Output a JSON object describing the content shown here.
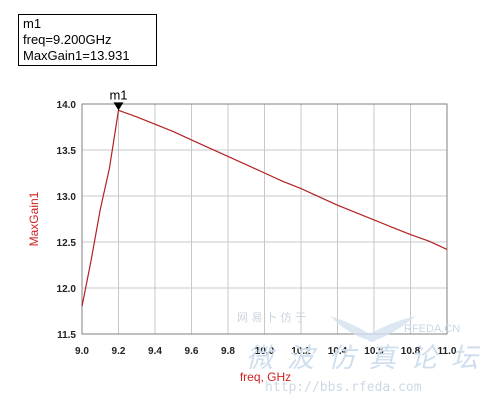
{
  "marker": {
    "name": "m1",
    "freq_line": "freq=9.200GHz",
    "value_line": "MaxGain1=13.931"
  },
  "watermark": {
    "cn_small": "网 易 卜 仿 于",
    "brand": "RFEDA.CN",
    "cn_big": "微波仿真论坛",
    "url": "http://bbs.rfeda.com"
  },
  "chart_data": {
    "type": "line",
    "xlabel": "freq, GHz",
    "ylabel": "MaxGain1",
    "xlim": [
      9.0,
      11.0
    ],
    "ylim": [
      11.5,
      14.0
    ],
    "x_ticks": [
      "9.0",
      "9.2",
      "9.4",
      "9.6",
      "9.8",
      "10.0",
      "10.2",
      "10.4",
      "10.6",
      "10.8",
      "11.0"
    ],
    "y_ticks": [
      "11.5",
      "12.0",
      "12.5",
      "13.0",
      "13.5",
      "14.0"
    ],
    "grid": true,
    "line_color": "#b22222",
    "axis_label_color": "#cc2222",
    "series": [
      {
        "x": [
          9.0,
          9.05,
          9.1,
          9.15,
          9.2,
          9.3,
          9.4,
          9.5,
          9.6,
          9.7,
          9.8,
          9.9,
          10.0,
          10.1,
          10.2,
          10.3,
          10.4,
          10.5,
          10.6,
          10.7,
          10.8,
          10.9,
          11.0
        ],
        "y": [
          11.8,
          12.3,
          12.85,
          13.3,
          13.931,
          13.86,
          13.78,
          13.7,
          13.61,
          13.52,
          13.43,
          13.34,
          13.25,
          13.16,
          13.08,
          12.99,
          12.9,
          12.82,
          12.74,
          12.66,
          12.58,
          12.51,
          12.42
        ]
      }
    ],
    "markers": [
      {
        "label": "m1",
        "x": 9.2,
        "y": 13.931
      }
    ]
  }
}
